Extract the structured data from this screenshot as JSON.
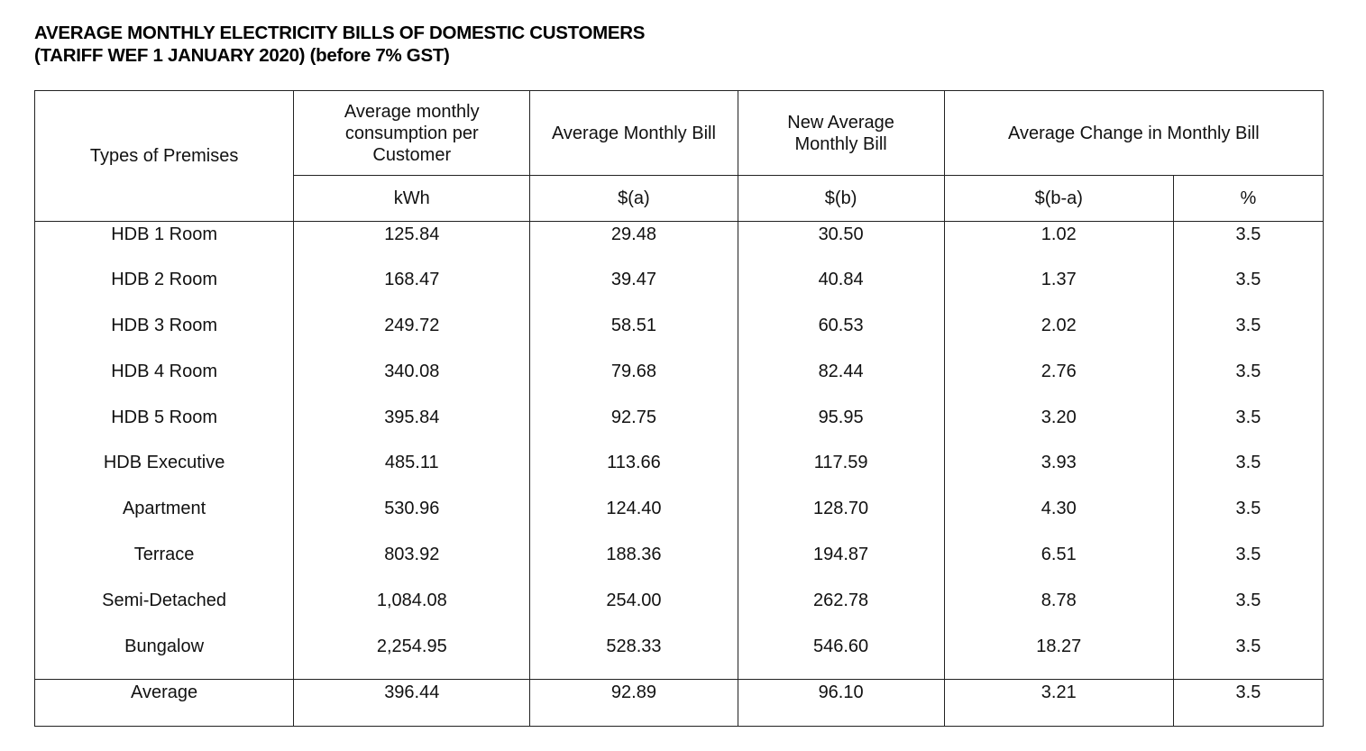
{
  "title": {
    "line1": "AVERAGE MONTHLY ELECTRICITY BILLS OF DOMESTIC CUSTOMERS",
    "line2": "(TARIFF WEF 1 JANUARY 2020) (before 7% GST)"
  },
  "table": {
    "headers": {
      "premises": "Types of Premises",
      "consumption": "Average monthly consumption per Customer",
      "bill": "Average Monthly Bill",
      "new_bill": "New Average Monthly Bill",
      "change": "Average Change in Monthly Bill"
    },
    "units": {
      "consumption": "kWh",
      "bill": "$(a)",
      "new_bill": "$(b)",
      "change_dollar": "$(b-a)",
      "change_percent": "%"
    },
    "rows": [
      {
        "premise": "HDB 1 Room",
        "consumption": "125.84",
        "bill": "29.48",
        "new_bill": "30.50",
        "change": "1.02",
        "percent": "3.5"
      },
      {
        "premise": "HDB 2 Room",
        "consumption": "168.47",
        "bill": "39.47",
        "new_bill": "40.84",
        "change": "1.37",
        "percent": "3.5"
      },
      {
        "premise": "HDB 3 Room",
        "consumption": "249.72",
        "bill": "58.51",
        "new_bill": "60.53",
        "change": "2.02",
        "percent": "3.5"
      },
      {
        "premise": "HDB 4 Room",
        "consumption": "340.08",
        "bill": "79.68",
        "new_bill": "82.44",
        "change": "2.76",
        "percent": "3.5"
      },
      {
        "premise": "HDB 5 Room",
        "consumption": "395.84",
        "bill": "92.75",
        "new_bill": "95.95",
        "change": "3.20",
        "percent": "3.5"
      },
      {
        "premise": "HDB Executive",
        "consumption": "485.11",
        "bill": "113.66",
        "new_bill": "117.59",
        "change": "3.93",
        "percent": "3.5"
      },
      {
        "premise": "Apartment",
        "consumption": "530.96",
        "bill": "124.40",
        "new_bill": "128.70",
        "change": "4.30",
        "percent": "3.5"
      },
      {
        "premise": "Terrace",
        "consumption": "803.92",
        "bill": "188.36",
        "new_bill": "194.87",
        "change": "6.51",
        "percent": "3.5"
      },
      {
        "premise": "Semi-Detached",
        "consumption": "1,084.08",
        "bill": "254.00",
        "new_bill": "262.78",
        "change": "8.78",
        "percent": "3.5"
      },
      {
        "premise": "Bungalow",
        "consumption": "2,254.95",
        "bill": "528.33",
        "new_bill": "546.60",
        "change": "18.27",
        "percent": "3.5"
      }
    ],
    "average": {
      "premise": "Average",
      "consumption": "396.44",
      "bill": "92.89",
      "new_bill": "96.10",
      "change": "3.21",
      "percent": "3.5"
    }
  }
}
